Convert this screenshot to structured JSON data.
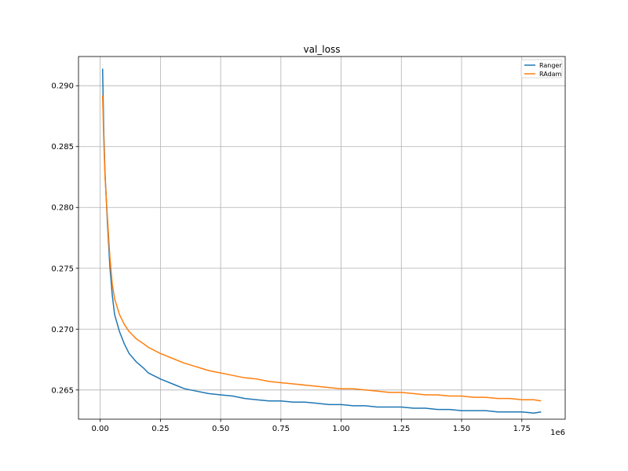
{
  "chart_data": {
    "type": "line",
    "title": "val_loss",
    "xlabel": "",
    "ylabel": "",
    "x_offset_label": "1e6",
    "xlim": [
      -0.09,
      1.93
    ],
    "ylim": [
      0.2626,
      0.2924
    ],
    "x_ticks": [
      0.0,
      0.25,
      0.5,
      0.75,
      1.0,
      1.25,
      1.5,
      1.75
    ],
    "x_tick_labels": [
      "0.00",
      "0.25",
      "0.50",
      "0.75",
      "1.00",
      "1.25",
      "1.50",
      "1.75"
    ],
    "y_ticks": [
      0.265,
      0.27,
      0.275,
      0.28,
      0.285,
      0.29
    ],
    "y_tick_labels": [
      "0.265",
      "0.270",
      "0.275",
      "0.280",
      "0.285",
      "0.290"
    ],
    "grid": true,
    "legend_position": "upper-right",
    "x_unit_multiplier": 1000000,
    "series": [
      {
        "name": "Ranger",
        "color": "#1f77b4",
        "x": [
          0.01,
          0.015,
          0.02,
          0.03,
          0.04,
          0.05,
          0.06,
          0.08,
          0.1,
          0.12,
          0.15,
          0.18,
          0.2,
          0.25,
          0.3,
          0.35,
          0.4,
          0.45,
          0.5,
          0.55,
          0.6,
          0.65,
          0.7,
          0.75,
          0.8,
          0.85,
          0.9,
          0.95,
          1.0,
          1.05,
          1.1,
          1.15,
          1.2,
          1.25,
          1.3,
          1.35,
          1.4,
          1.45,
          1.5,
          1.55,
          1.6,
          1.65,
          1.7,
          1.75,
          1.8,
          1.83
        ],
        "y": [
          0.2914,
          0.2862,
          0.2828,
          0.2788,
          0.2752,
          0.2728,
          0.2712,
          0.2698,
          0.2688,
          0.268,
          0.2673,
          0.2668,
          0.2664,
          0.2659,
          0.2655,
          0.2651,
          0.2649,
          0.2647,
          0.2646,
          0.2645,
          0.2643,
          0.2642,
          0.2641,
          0.2641,
          0.264,
          0.264,
          0.2639,
          0.2638,
          0.2638,
          0.2637,
          0.2637,
          0.2636,
          0.2636,
          0.2636,
          0.2635,
          0.2635,
          0.2634,
          0.2634,
          0.2633,
          0.2633,
          0.2633,
          0.2632,
          0.2632,
          0.2632,
          0.2631,
          0.2632
        ]
      },
      {
        "name": "RAdam",
        "color": "#ff7f0e",
        "x": [
          0.01,
          0.015,
          0.02,
          0.03,
          0.04,
          0.05,
          0.06,
          0.08,
          0.1,
          0.12,
          0.15,
          0.18,
          0.2,
          0.25,
          0.3,
          0.35,
          0.4,
          0.45,
          0.5,
          0.55,
          0.6,
          0.65,
          0.7,
          0.75,
          0.8,
          0.85,
          0.9,
          0.95,
          1.0,
          1.05,
          1.1,
          1.15,
          1.2,
          1.25,
          1.3,
          1.35,
          1.4,
          1.45,
          1.5,
          1.55,
          1.6,
          1.65,
          1.7,
          1.75,
          1.8,
          1.83
        ],
        "y": [
          0.2892,
          0.2855,
          0.2825,
          0.2792,
          0.276,
          0.2737,
          0.2725,
          0.2712,
          0.2704,
          0.2698,
          0.2692,
          0.2688,
          0.2685,
          0.268,
          0.2676,
          0.2672,
          0.2669,
          0.2666,
          0.2664,
          0.2662,
          0.266,
          0.2659,
          0.2657,
          0.2656,
          0.2655,
          0.2654,
          0.2653,
          0.2652,
          0.2651,
          0.2651,
          0.265,
          0.2649,
          0.2648,
          0.2648,
          0.2647,
          0.2646,
          0.2646,
          0.2645,
          0.2645,
          0.2644,
          0.2644,
          0.2643,
          0.2643,
          0.2642,
          0.2642,
          0.2641
        ]
      }
    ]
  }
}
